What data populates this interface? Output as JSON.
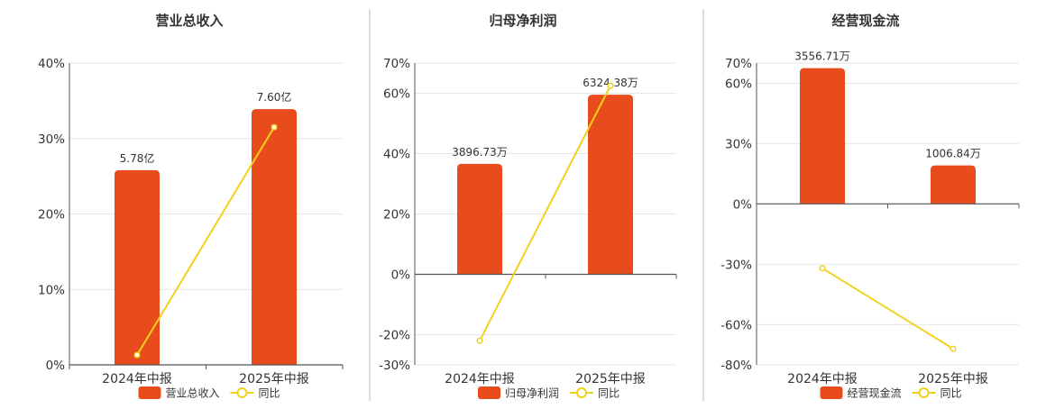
{
  "colors": {
    "bar": "#e84c1c",
    "line": "#f0d21c",
    "grid": "#e6e6e6",
    "axis": "#555555",
    "text": "#333333",
    "divider": "#bbbbbb"
  },
  "chart_data": [
    {
      "type": "bar",
      "title": "营业总收入",
      "categories": [
        "2024年中报",
        "2025年中报"
      ],
      "series": [
        {
          "name": "营业总收入",
          "type": "bar",
          "values": [
            25.8,
            33.9
          ],
          "labels": [
            "5.78亿",
            "7.60亿"
          ]
        },
        {
          "name": "同比",
          "type": "line",
          "values": [
            1.3,
            31.5
          ]
        }
      ],
      "y_ticks": [
        "40%",
        "30%",
        "20%",
        "10%",
        "0%"
      ],
      "y_tick_values": [
        40,
        30,
        20,
        10,
        0
      ],
      "ylim": [
        0,
        40
      ],
      "grid": true,
      "legend": "bottom"
    },
    {
      "type": "bar",
      "title": "归母净利润",
      "categories": [
        "2024年中报",
        "2025年中报"
      ],
      "series": [
        {
          "name": "归母净利润",
          "type": "bar",
          "values": [
            36.6,
            59.5
          ],
          "labels": [
            "3896.73万",
            "6324.38万"
          ]
        },
        {
          "name": "同比",
          "type": "line",
          "values": [
            -22,
            62.5
          ]
        }
      ],
      "y_ticks": [
        "70%",
        "60%",
        "40%",
        "20%",
        "0%",
        "-20%",
        "-30%"
      ],
      "y_tick_values": [
        70,
        60,
        40,
        20,
        0,
        -20,
        -30
      ],
      "ylim": [
        -30,
        70
      ],
      "grid": true,
      "legend": "bottom"
    },
    {
      "type": "bar",
      "title": "经营现金流",
      "categories": [
        "2024年中报",
        "2025年中报"
      ],
      "series": [
        {
          "name": "经营现金流",
          "type": "bar",
          "values": [
            67.5,
            19.1
          ],
          "labels": [
            "3556.71万",
            "1006.84万"
          ]
        },
        {
          "name": "同比",
          "type": "line",
          "values": [
            -32,
            -72
          ]
        }
      ],
      "y_ticks": [
        "70%",
        "60%",
        "30%",
        "0%",
        "-30%",
        "-60%",
        "-80%"
      ],
      "y_tick_values": [
        70,
        60,
        30,
        0,
        -30,
        -60,
        -80
      ],
      "ylim": [
        -80,
        70
      ],
      "grid": true,
      "legend": "bottom"
    }
  ]
}
